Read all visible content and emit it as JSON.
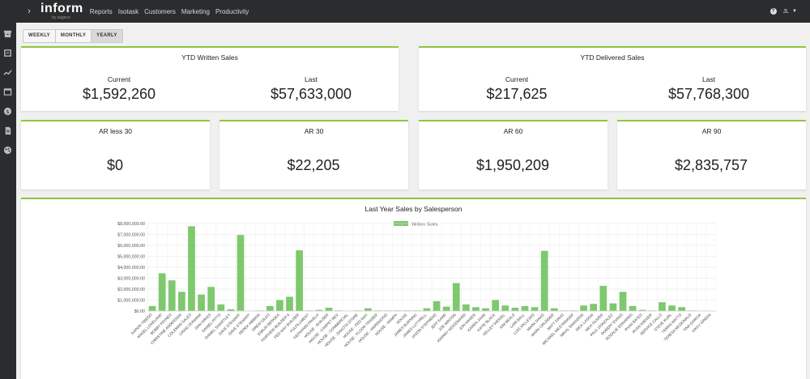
{
  "app": {
    "logo": "inform",
    "logo_sub": "by sageco",
    "nav": [
      "Reports",
      "Isotask",
      "Customers",
      "Marketing",
      "Productivity"
    ],
    "user": "JL",
    "help": "?"
  },
  "period_buttons": {
    "weekly": "WEEKLY",
    "monthly": "MONTHLY",
    "yearly": "YEARLY",
    "active": "YEARLY"
  },
  "ytd_written": {
    "title": "YTD Written Sales",
    "current_label": "Current",
    "current_value": "$1,592,260",
    "last_label": "Last",
    "last_value": "$57,633,000"
  },
  "ytd_delivered": {
    "title": "YTD Delivered Sales",
    "current_label": "Current",
    "current_value": "$217,625",
    "last_label": "Last",
    "last_value": "$57,768,300"
  },
  "ar": [
    {
      "label": "AR less 30",
      "value": "$0"
    },
    {
      "label": "AR 30",
      "value": "$22,205"
    },
    {
      "label": "AR 60",
      "value": "$1,950,209"
    },
    {
      "label": "AR 90",
      "value": "$2,835,757"
    }
  ],
  "colors": {
    "accent": "#8dc63f",
    "bar": "#7ec86e",
    "topbar": "#2b2c2e"
  },
  "chart_data": {
    "type": "bar",
    "title": "Last Year Sales by Salesperson",
    "legend": "Written Sales",
    "legend_position": "top",
    "grid": true,
    "ylim": [
      0,
      8000000
    ],
    "yticks": [
      "$0.00",
      "$1,000,000.00",
      "$2,000,000.00",
      "$3,000,000.00",
      "$4,000,000.00",
      "$5,000,000.00",
      "$6,000,000.00",
      "$7,000,000.00",
      "$8,000,000.00"
    ],
    "categories": [
      "AARON TIBEDO",
      "ANGEL LOVELAND",
      "BOBBY PAYNES",
      "CHRISTINE ANDERSON",
      "COLEMAN SALES",
      "CRAIG DUNHAM",
      "DAN WIKES",
      "DANIEL PITTS",
      "DANIEL SWARTLEY",
      "DAVE STEWART",
      "DAVE STEWART",
      "DEREK HIBBON",
      "DREW GILES",
      "EMILIO BENGEA",
      "FAIRVIEW BUILDER 6",
      "FED WAY BUILDER",
      "FULFILLMENT",
      "GEOVANNI FAVELA",
      "HOUSE - BUILDER",
      "HOUSE - CARPET REV",
      "HOUSE - COMMERCIAL",
      "HOUSE - DAKOTA STORE",
      "HOUSE - FED WAY",
      "HOUSE - FLOOR TRADER",
      "HOUSE - HARDWOOD",
      "HOUSE - NAMPA",
      "HOUSE",
      "JAMES BURNING",
      "JAMES LUTTRELL",
      "JASON STEPHENS",
      "JEFF KARR",
      "JOE MINTON",
      "JOHNNY WOODWARD",
      "JON HAGEN",
      "KAREN JAHN",
      "KATIE BLACK",
      "KELLEY WEIGEL",
      "KIM BEALS",
      "LORI BALL",
      "LUIS VALLEJOS",
      "MARK DAVIS",
      "MARK GRUNDER",
      "MATT DAVIS",
      "MICHAEL WESTRINGER",
      "MIKAL SWANSON",
      "NICK LASKIN",
      "NICK OLIVER",
      "PAUL GONZALEZ",
      "ROBERT EVANS",
      "ROSALIE EDWARDS",
      "RYAN BATES",
      "RYAN WIEGER",
      "SERVICE CALLS",
      "STEVE KURL",
      "TERRA WATTS",
      "TERESA MCDONALD",
      "TINA GARCIA",
      "VIKKY GREEN"
    ],
    "values": [
      450000,
      3450000,
      2800000,
      1750000,
      7750000,
      1500000,
      2200000,
      600000,
      150000,
      6950000,
      0,
      50000,
      450000,
      1000000,
      1300000,
      5550000,
      50000,
      100000,
      300000,
      50000,
      0,
      50000,
      250000,
      50000,
      50000,
      50000,
      50000,
      50000,
      250000,
      900000,
      400000,
      2550000,
      600000,
      350000,
      250000,
      1000000,
      500000,
      300000,
      450000,
      350000,
      5500000,
      250000,
      50000,
      50000,
      500000,
      650000,
      2300000,
      700000,
      1750000,
      450000,
      100000,
      50000,
      800000,
      500000,
      350000,
      50000,
      0,
      0
    ]
  }
}
